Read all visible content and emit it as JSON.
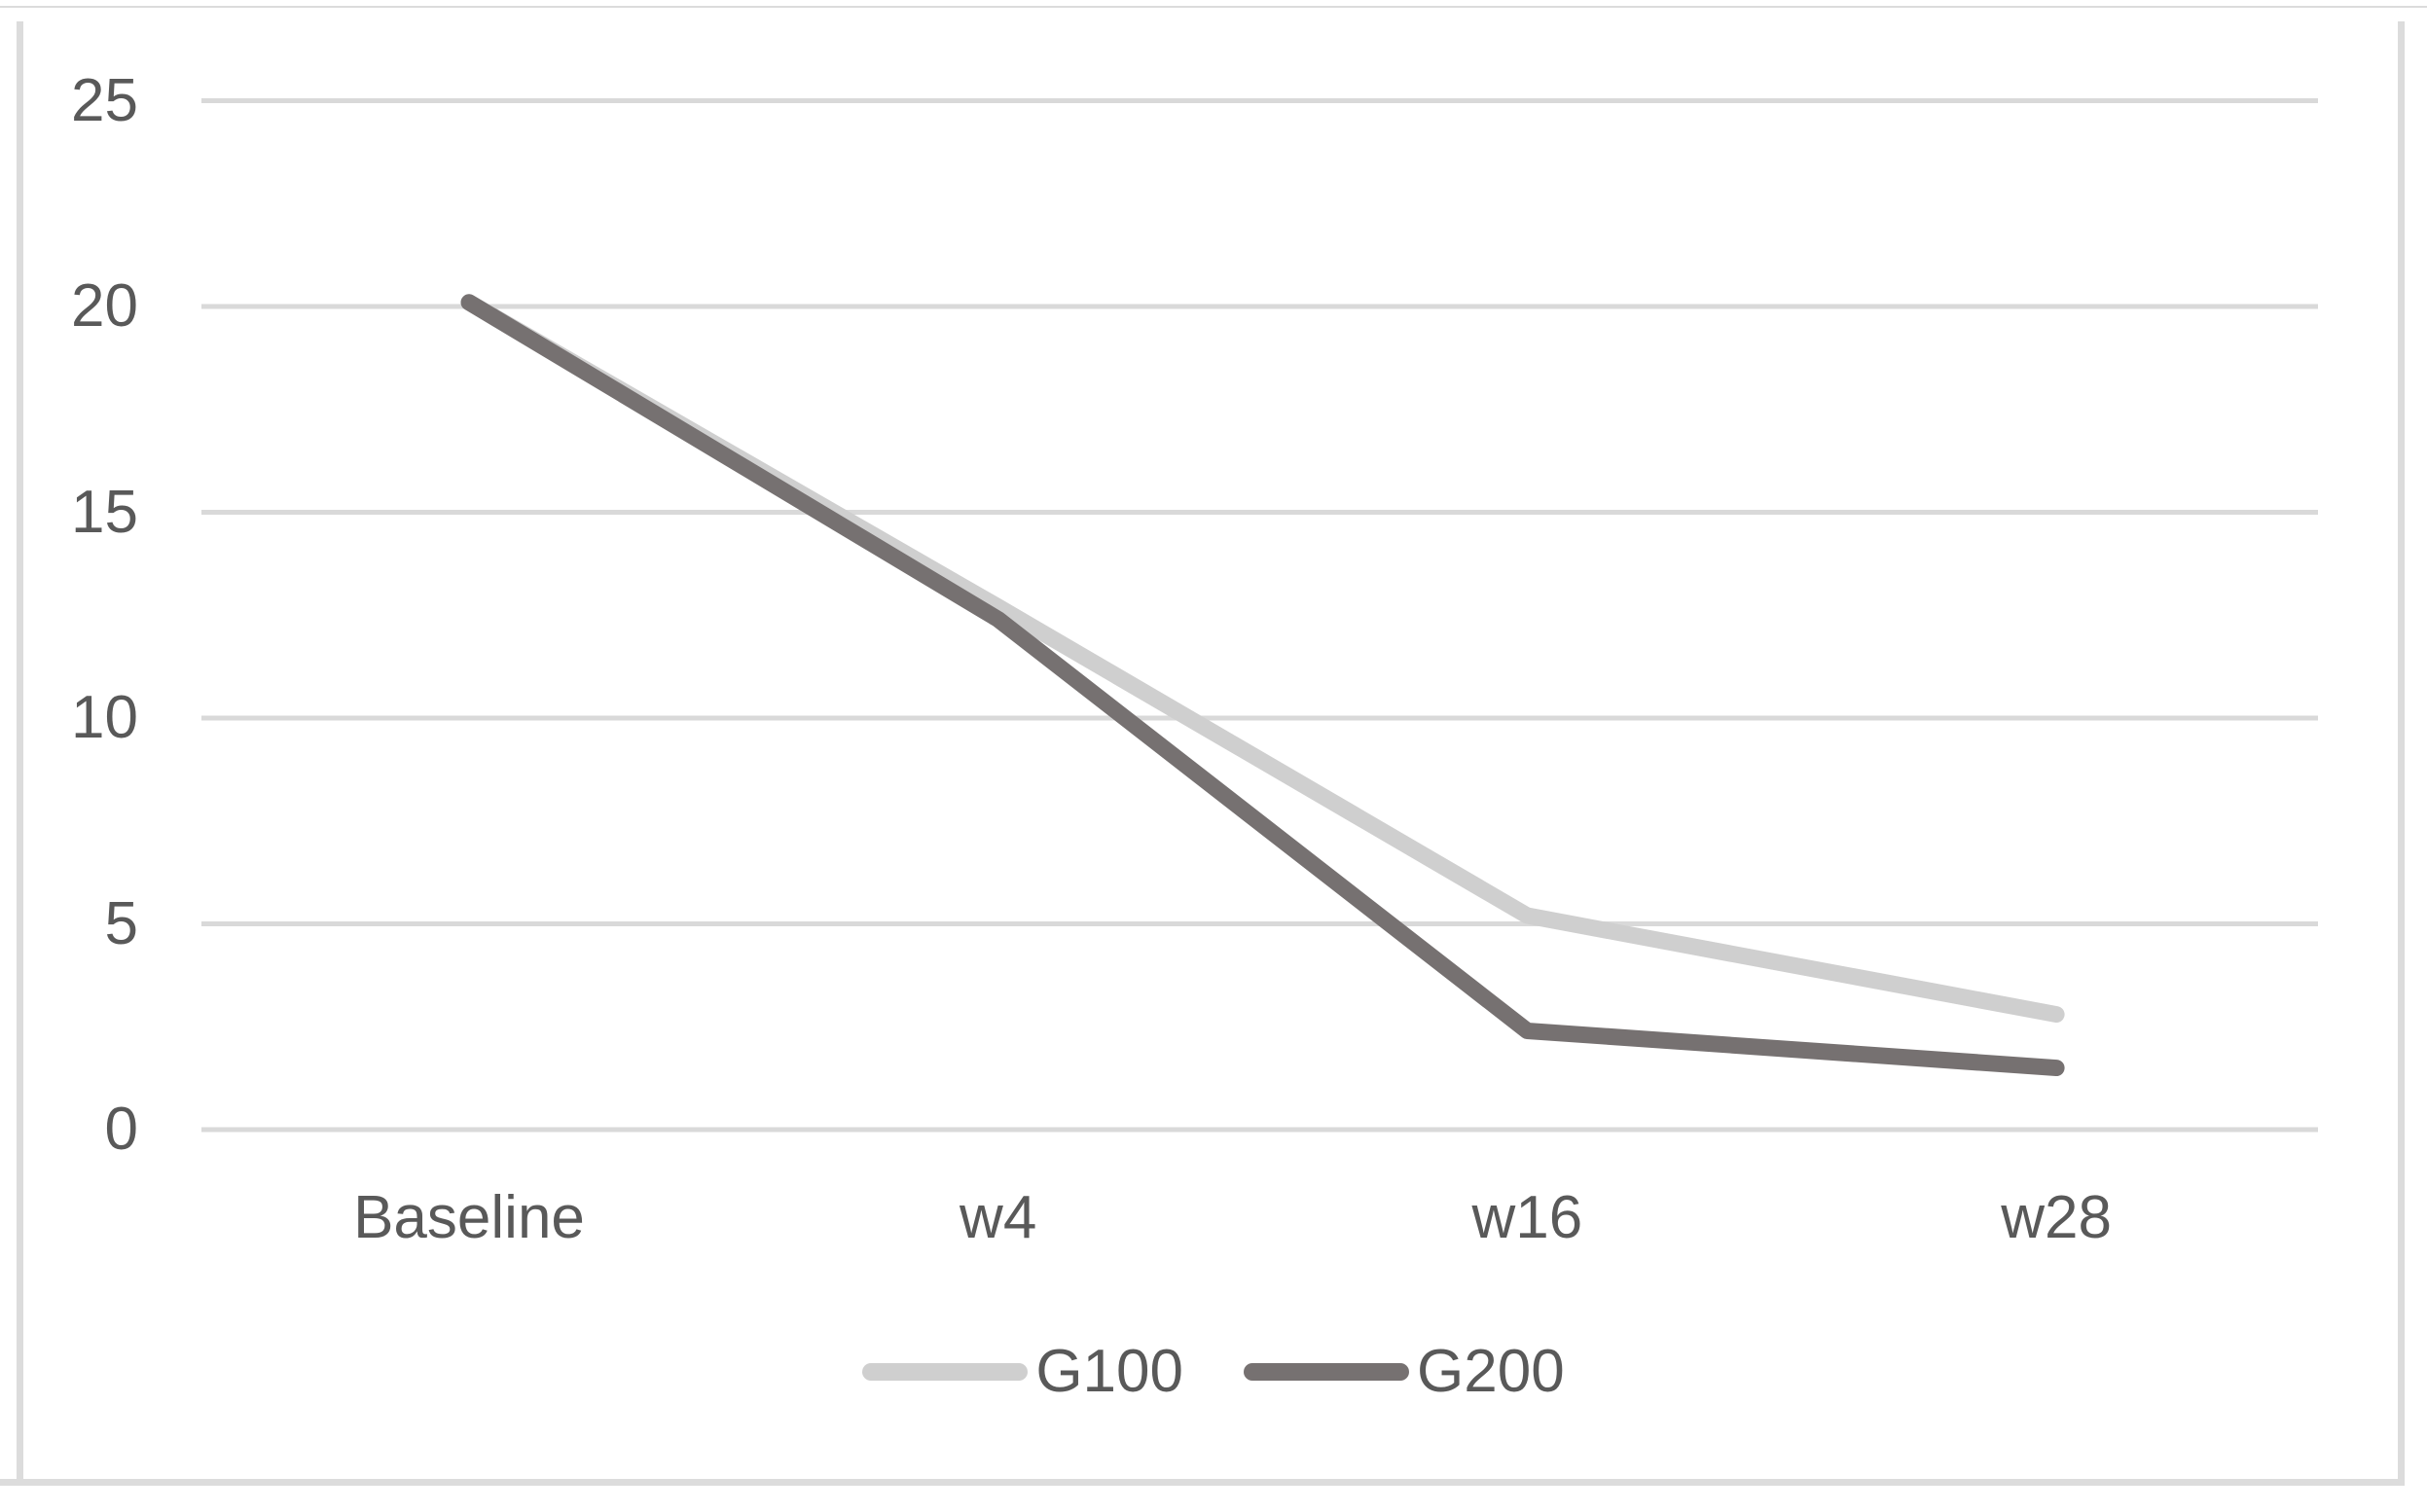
{
  "figure": {
    "background": "#ffffff",
    "border_color": "#dcdcdc"
  },
  "chart_data": {
    "type": "line",
    "title": "",
    "xlabel": "",
    "ylabel": "",
    "categories": [
      "Baseline",
      "w4",
      "w16",
      "w28"
    ],
    "series": [
      {
        "name": "G100",
        "color": "#cfcfcf",
        "values": [
          20.1,
          12.7,
          5.2,
          2.8
        ]
      },
      {
        "name": "G200",
        "color": "#767171",
        "values": [
          20.1,
          12.4,
          2.4,
          1.5
        ]
      }
    ],
    "ylim": [
      0,
      25
    ],
    "yticks": [
      0,
      5,
      10,
      15,
      20,
      25
    ],
    "grid": "horizontal",
    "gridline_color": "#d9d9d9",
    "axis_text_color": "#595959",
    "line_width": 17,
    "legend_position": "bottom"
  }
}
